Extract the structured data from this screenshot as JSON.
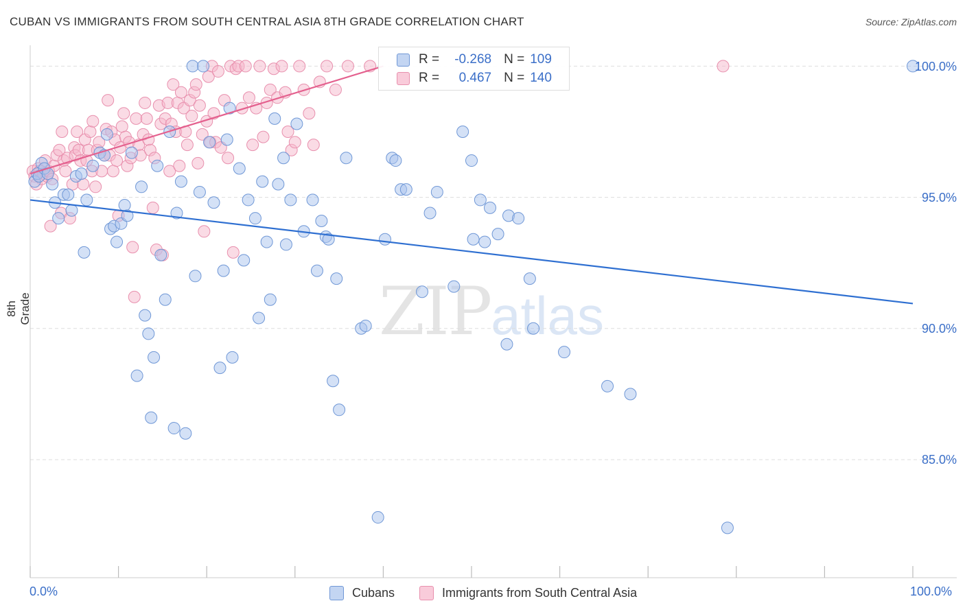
{
  "header": {
    "title": "CUBAN VS IMMIGRANTS FROM SOUTH CENTRAL ASIA 8TH GRADE CORRELATION CHART",
    "source": "Source: ZipAtlas.com"
  },
  "watermark": {
    "zip": "ZIP",
    "atlas": "atlas"
  },
  "legend_top": {
    "rows": [
      {
        "r_label": "R =",
        "r_value": "-0.268",
        "n_label": "N =",
        "n_value": "109"
      },
      {
        "r_label": "R =",
        "r_value": "0.467",
        "n_label": "N =",
        "n_value": "140"
      }
    ]
  },
  "colors": {
    "blue_fill": "#a9c4ee",
    "blue_stroke": "#6f97d6",
    "blue_line": "#2e6fd1",
    "pink_fill": "#f6b8cc",
    "pink_stroke": "#e88fad",
    "pink_line": "#e4608e",
    "grid": "#dddddd",
    "tick_text": "#3b6fc8"
  },
  "chart_data": {
    "type": "scatter",
    "title": "CUBAN VS IMMIGRANTS FROM SOUTH CENTRAL ASIA 8TH GRADE CORRELATION CHART",
    "xlabel": "",
    "ylabel": "8th Grade",
    "xlim": [
      0,
      100
    ],
    "ylim": [
      80.5,
      100.9
    ],
    "x_tick_labels": [
      "0.0%",
      "100.0%"
    ],
    "y_ticks": [
      85.0,
      90.0,
      95.0,
      100.0
    ],
    "y_tick_labels": [
      "85.0%",
      "90.0%",
      "95.0%",
      "100.0%"
    ],
    "grid": true,
    "legend_position": "top-center",
    "series": [
      {
        "name": "Cubans",
        "color": "#a9c4ee",
        "r": -0.268,
        "n": 109,
        "trend": [
          [
            0,
            94.9
          ],
          [
            100,
            90.95
          ]
        ],
        "points": [
          [
            0.5,
            95.6
          ],
          [
            0.8,
            95.9
          ],
          [
            1.0,
            95.8
          ],
          [
            1.3,
            96.3
          ],
          [
            1.6,
            96.1
          ],
          [
            2.0,
            95.9
          ],
          [
            2.5,
            95.5
          ],
          [
            2.8,
            94.8
          ],
          [
            3.2,
            94.2
          ],
          [
            3.8,
            95.1
          ],
          [
            4.3,
            95.1
          ],
          [
            4.7,
            94.5
          ],
          [
            5.2,
            95.8
          ],
          [
            5.8,
            95.9
          ],
          [
            6.1,
            92.9
          ],
          [
            6.4,
            94.9
          ],
          [
            7.1,
            96.2
          ],
          [
            7.9,
            96.7
          ],
          [
            8.4,
            96.6
          ],
          [
            8.7,
            97.4
          ],
          [
            9.1,
            93.8
          ],
          [
            9.5,
            93.9
          ],
          [
            9.8,
            93.3
          ],
          [
            10.3,
            94.0
          ],
          [
            10.7,
            94.7
          ],
          [
            11.0,
            94.3
          ],
          [
            11.5,
            96.7
          ],
          [
            12.1,
            88.2
          ],
          [
            12.6,
            95.4
          ],
          [
            13.0,
            90.5
          ],
          [
            13.4,
            89.8
          ],
          [
            13.7,
            86.6
          ],
          [
            14.0,
            88.9
          ],
          [
            14.4,
            96.2
          ],
          [
            14.8,
            92.8
          ],
          [
            15.3,
            91.1
          ],
          [
            15.8,
            97.5
          ],
          [
            16.3,
            86.2
          ],
          [
            16.6,
            94.4
          ],
          [
            17.1,
            95.6
          ],
          [
            17.6,
            86.0
          ],
          [
            18.4,
            100.0
          ],
          [
            18.7,
            92.0
          ],
          [
            19.2,
            95.2
          ],
          [
            19.6,
            100.0
          ],
          [
            20.3,
            97.1
          ],
          [
            20.8,
            94.8
          ],
          [
            21.5,
            88.5
          ],
          [
            21.9,
            92.2
          ],
          [
            22.3,
            97.2
          ],
          [
            22.6,
            98.4
          ],
          [
            22.9,
            88.9
          ],
          [
            23.7,
            96.1
          ],
          [
            24.2,
            92.6
          ],
          [
            24.7,
            94.9
          ],
          [
            25.5,
            94.2
          ],
          [
            25.9,
            90.4
          ],
          [
            26.3,
            95.6
          ],
          [
            26.8,
            93.3
          ],
          [
            27.2,
            91.1
          ],
          [
            27.7,
            98.0
          ],
          [
            28.1,
            95.5
          ],
          [
            28.7,
            96.5
          ],
          [
            29.0,
            93.2
          ],
          [
            29.5,
            94.9
          ],
          [
            30.2,
            97.8
          ],
          [
            31.0,
            93.7
          ],
          [
            32.0,
            94.9
          ],
          [
            32.5,
            92.2
          ],
          [
            33.0,
            94.1
          ],
          [
            33.5,
            93.5
          ],
          [
            33.8,
            93.4
          ],
          [
            34.3,
            88.0
          ],
          [
            34.7,
            91.9
          ],
          [
            35.0,
            86.9
          ],
          [
            35.8,
            96.5
          ],
          [
            37.5,
            90.0
          ],
          [
            38.0,
            90.1
          ],
          [
            39.4,
            82.8
          ],
          [
            40.2,
            93.4
          ],
          [
            41.0,
            96.5
          ],
          [
            41.4,
            96.4
          ],
          [
            42.0,
            95.3
          ],
          [
            42.6,
            95.3
          ],
          [
            44.4,
            91.4
          ],
          [
            45.3,
            94.4
          ],
          [
            46.1,
            95.2
          ],
          [
            48.0,
            91.6
          ],
          [
            49.0,
            97.5
          ],
          [
            50.0,
            96.4
          ],
          [
            50.2,
            93.4
          ],
          [
            51.0,
            94.9
          ],
          [
            51.5,
            93.3
          ],
          [
            52.1,
            94.6
          ],
          [
            53.0,
            93.6
          ],
          [
            54.0,
            89.4
          ],
          [
            54.2,
            94.3
          ],
          [
            55.3,
            94.2
          ],
          [
            56.6,
            91.9
          ],
          [
            57.0,
            90.0
          ],
          [
            60.5,
            89.1
          ],
          [
            65.4,
            87.8
          ],
          [
            68.0,
            87.5
          ],
          [
            79.0,
            82.4
          ],
          [
            100.0,
            100.0
          ]
        ]
      },
      {
        "name": "Immigrants from South Central Asia",
        "color": "#f6b8cc",
        "r": 0.467,
        "n": 140,
        "trend": [
          [
            0,
            95.9
          ],
          [
            40,
            100.0
          ]
        ],
        "points": [
          [
            0.3,
            96.0
          ],
          [
            0.5,
            95.8
          ],
          [
            0.7,
            95.5
          ],
          [
            0.9,
            96.1
          ],
          [
            1.1,
            96.0
          ],
          [
            1.3,
            95.7
          ],
          [
            1.5,
            95.9
          ],
          [
            1.7,
            96.4
          ],
          [
            1.9,
            95.8
          ],
          [
            2.1,
            96.0
          ],
          [
            2.3,
            93.9
          ],
          [
            2.5,
            95.7
          ],
          [
            2.7,
            96.2
          ],
          [
            3.0,
            96.6
          ],
          [
            3.3,
            96.8
          ],
          [
            3.5,
            94.4
          ],
          [
            3.6,
            97.5
          ],
          [
            3.8,
            96.4
          ],
          [
            4.0,
            96.0
          ],
          [
            4.2,
            96.5
          ],
          [
            4.5,
            94.2
          ],
          [
            4.8,
            95.5
          ],
          [
            5.0,
            96.9
          ],
          [
            5.1,
            96.6
          ],
          [
            5.3,
            97.5
          ],
          [
            5.5,
            96.8
          ],
          [
            5.7,
            96.4
          ],
          [
            6.0,
            95.5
          ],
          [
            6.2,
            97.2
          ],
          [
            6.4,
            96.4
          ],
          [
            6.6,
            96.8
          ],
          [
            6.8,
            97.5
          ],
          [
            7.0,
            96.0
          ],
          [
            7.1,
            97.9
          ],
          [
            7.4,
            95.4
          ],
          [
            7.6,
            96.8
          ],
          [
            7.8,
            97.1
          ],
          [
            8.1,
            96.0
          ],
          [
            8.4,
            96.6
          ],
          [
            8.6,
            97.6
          ],
          [
            8.8,
            98.7
          ],
          [
            9.0,
            96.6
          ],
          [
            9.2,
            97.5
          ],
          [
            9.4,
            96.0
          ],
          [
            9.6,
            97.2
          ],
          [
            9.8,
            96.4
          ],
          [
            10.0,
            94.3
          ],
          [
            10.2,
            96.9
          ],
          [
            10.4,
            97.7
          ],
          [
            10.6,
            98.2
          ],
          [
            10.8,
            97.3
          ],
          [
            11.0,
            96.2
          ],
          [
            11.2,
            97.1
          ],
          [
            11.4,
            96.5
          ],
          [
            11.6,
            93.1
          ],
          [
            11.8,
            91.2
          ],
          [
            12.0,
            98.0
          ],
          [
            12.3,
            97.0
          ],
          [
            12.5,
            96.6
          ],
          [
            12.8,
            97.4
          ],
          [
            13.0,
            98.6
          ],
          [
            13.2,
            98.0
          ],
          [
            13.4,
            97.2
          ],
          [
            13.6,
            96.8
          ],
          [
            13.9,
            94.6
          ],
          [
            14.1,
            96.5
          ],
          [
            14.3,
            93.0
          ],
          [
            14.6,
            98.5
          ],
          [
            14.8,
            97.8
          ],
          [
            15.0,
            92.8
          ],
          [
            15.3,
            98.0
          ],
          [
            15.6,
            98.6
          ],
          [
            15.8,
            96.0
          ],
          [
            16.0,
            97.8
          ],
          [
            16.2,
            99.3
          ],
          [
            16.5,
            97.5
          ],
          [
            16.7,
            98.6
          ],
          [
            16.9,
            96.2
          ],
          [
            17.1,
            99.0
          ],
          [
            17.4,
            98.4
          ],
          [
            17.6,
            97.5
          ],
          [
            17.8,
            97.0
          ],
          [
            18.1,
            98.7
          ],
          [
            18.3,
            98.1
          ],
          [
            18.6,
            99.0
          ],
          [
            18.8,
            99.3
          ],
          [
            19.0,
            96.3
          ],
          [
            19.2,
            98.5
          ],
          [
            19.5,
            97.4
          ],
          [
            19.7,
            93.7
          ],
          [
            20.0,
            97.9
          ],
          [
            20.2,
            99.6
          ],
          [
            20.4,
            97.1
          ],
          [
            20.6,
            100.0
          ],
          [
            20.8,
            98.2
          ],
          [
            21.0,
            97.1
          ],
          [
            21.3,
            99.8
          ],
          [
            21.6,
            96.9
          ],
          [
            22.0,
            98.7
          ],
          [
            22.4,
            96.5
          ],
          [
            22.7,
            100.0
          ],
          [
            23.0,
            92.9
          ],
          [
            23.3,
            99.9
          ],
          [
            23.6,
            100.0
          ],
          [
            24.0,
            98.4
          ],
          [
            24.4,
            100.0
          ],
          [
            24.8,
            98.8
          ],
          [
            25.2,
            97.0
          ],
          [
            25.6,
            98.4
          ],
          [
            26.0,
            100.0
          ],
          [
            26.4,
            97.3
          ],
          [
            26.8,
            98.6
          ],
          [
            27.2,
            99.1
          ],
          [
            27.6,
            99.9
          ],
          [
            28.0,
            98.8
          ],
          [
            28.5,
            100.0
          ],
          [
            28.9,
            99.0
          ],
          [
            29.2,
            97.5
          ],
          [
            29.6,
            96.8
          ],
          [
            30.0,
            97.1
          ],
          [
            30.5,
            100.0
          ],
          [
            31.0,
            99.1
          ],
          [
            31.6,
            98.2
          ],
          [
            32.1,
            97.0
          ],
          [
            32.8,
            99.4
          ],
          [
            33.6,
            100.0
          ],
          [
            34.6,
            99.1
          ],
          [
            36.0,
            100.0
          ],
          [
            38.5,
            100.0
          ],
          [
            78.5,
            100.0
          ]
        ]
      }
    ]
  },
  "bottom_legend": {
    "items": [
      {
        "label": "Cubans"
      },
      {
        "label": "Immigrants from South Central Asia"
      }
    ]
  },
  "axes": {
    "ylabel": "8th Grade",
    "x_left_label": "0.0%",
    "x_right_label": "100.0%",
    "y_labels": [
      "85.0%",
      "90.0%",
      "95.0%",
      "100.0%"
    ]
  }
}
